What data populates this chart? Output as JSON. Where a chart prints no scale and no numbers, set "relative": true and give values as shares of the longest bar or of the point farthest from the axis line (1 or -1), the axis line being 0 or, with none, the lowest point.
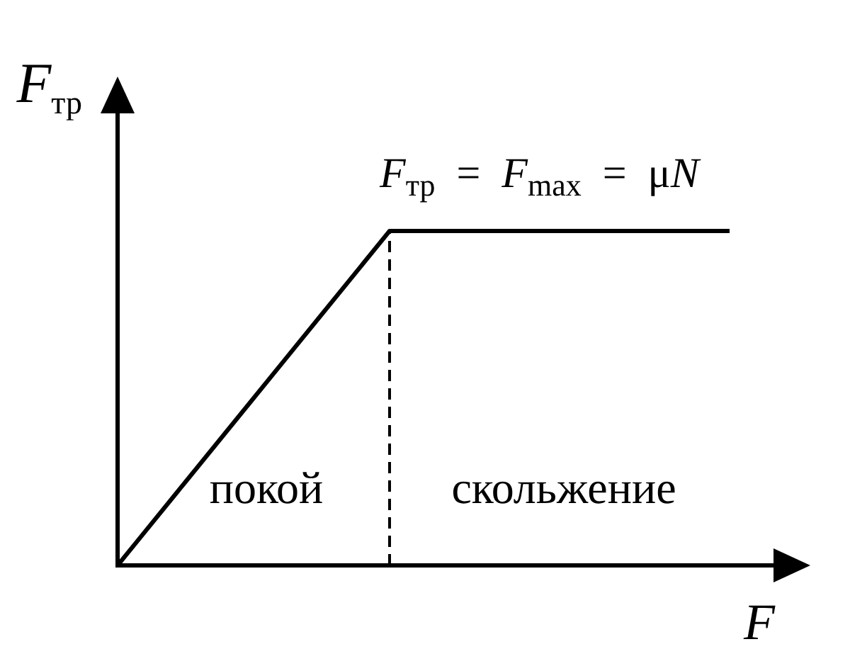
{
  "chart_data": {
    "type": "line",
    "relative": true,
    "xlabel": "F",
    "ylabel": "F$_{тр}$",
    "categories": [
      null,
      null,
      null,
      null,
      null,
      null,
      null,
      null,
      null,
      null
    ],
    "series": [
      {
        "color": "#000000",
        "values": [
          0,
          0.25,
          0.5,
          0.75,
          1,
          1,
          1,
          1,
          1,
          1
        ]
      }
    ],
    "annotations": [
      "F$_{тр}$ = F$_{max}$ = μN",
      "покой",
      "скольжение"
    ]
  }
}
